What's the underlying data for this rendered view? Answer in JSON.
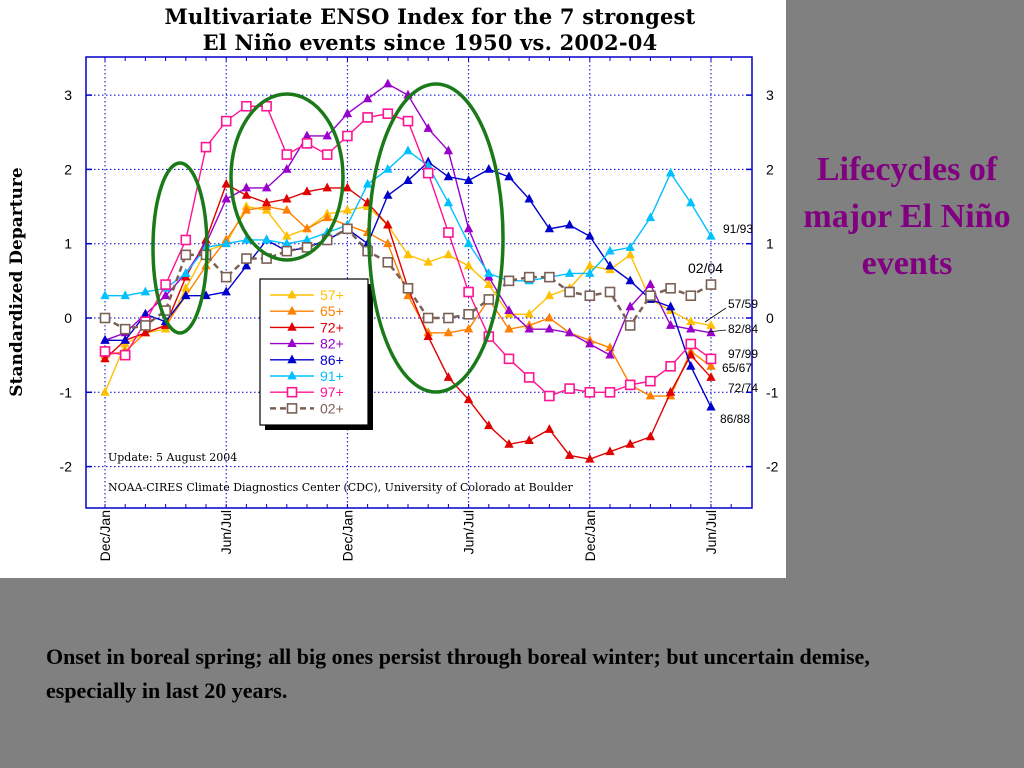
{
  "slide": {
    "side_title": "Lifecycles of major El Niño events",
    "caption": "Onset in boreal spring; all big ones persist through boreal winter; but uncertain demise, especially in last 20 years."
  },
  "chart_data": {
    "type": "line",
    "title": "Multivariate ENSO Index for the 7 strongest",
    "subtitle": "El Niño events since 1950 vs. 2002-04",
    "ylabel": "Standardized Departure",
    "xlabel": "",
    "ylim": [
      -2.5,
      3.4
    ],
    "yticks": [
      -2,
      -1,
      0,
      1,
      2,
      3
    ],
    "xlim": [
      0,
      31
    ],
    "xticks": [
      {
        "x": 0,
        "label": "Dec/Jan"
      },
      {
        "x": 6,
        "label": "Jun/Jul"
      },
      {
        "x": 12,
        "label": "Dec/Jan"
      },
      {
        "x": 18,
        "label": "Jun/Jul"
      },
      {
        "x": 24,
        "label": "Dec/Jan"
      },
      {
        "x": 30,
        "label": "Jun/Jul"
      }
    ],
    "grid": true,
    "legend_position": "center-left",
    "notes": [
      "Update: 5 August 2004",
      "NOAA-CIRES Climate Diagnostics Center (CDC), University of Colorado at Boulder"
    ],
    "series": [
      {
        "name": "57+",
        "end_label": "57/59",
        "color": "#ffc000",
        "marker": "triangle",
        "x": [
          0,
          1,
          2,
          3,
          4,
          5,
          6,
          7,
          8,
          9,
          10,
          11,
          12,
          13,
          14,
          15,
          16,
          17,
          18,
          19,
          20,
          21,
          22,
          23,
          24,
          25,
          26,
          27,
          28,
          29,
          30
        ],
        "values": [
          -1.0,
          -0.35,
          -0.2,
          -0.15,
          0.4,
          0.9,
          1.0,
          1.5,
          1.45,
          1.1,
          1.2,
          1.4,
          1.45,
          1.5,
          1.25,
          0.85,
          0.75,
          0.85,
          0.7,
          0.45,
          0.05,
          0.05,
          0.3,
          0.4,
          0.7,
          0.65,
          0.85,
          0.25,
          0.1,
          -0.05,
          -0.1
        ]
      },
      {
        "name": "65+",
        "end_label": "65/67",
        "color": "#ff8000",
        "marker": "triangle",
        "x": [
          0,
          1,
          2,
          3,
          4,
          5,
          6,
          7,
          8,
          9,
          10,
          11,
          12,
          13,
          14,
          15,
          16,
          17,
          18,
          19,
          20,
          21,
          22,
          23,
          24,
          25,
          26,
          27,
          28,
          29,
          30
        ],
        "values": [
          -0.5,
          -0.45,
          -0.2,
          -0.1,
          0.3,
          0.7,
          1.05,
          1.45,
          1.5,
          1.45,
          1.2,
          1.35,
          1.25,
          1.15,
          1.0,
          0.3,
          -0.2,
          -0.2,
          -0.15,
          0.25,
          -0.15,
          -0.1,
          0.0,
          -0.2,
          -0.3,
          -0.4,
          -0.9,
          -1.05,
          -1.05,
          -0.45,
          -0.65
        ]
      },
      {
        "name": "72+",
        "end_label": "72/74",
        "color": "#e00000",
        "marker": "triangle",
        "x": [
          0,
          1,
          2,
          3,
          4,
          5,
          6,
          7,
          8,
          9,
          10,
          11,
          12,
          13,
          14,
          15,
          16,
          17,
          18,
          19,
          20,
          21,
          22,
          23,
          24,
          25,
          26,
          27,
          28,
          29,
          30
        ],
        "values": [
          -0.55,
          -0.3,
          -0.2,
          -0.1,
          0.55,
          1.05,
          1.8,
          1.65,
          1.55,
          1.6,
          1.7,
          1.75,
          1.75,
          1.55,
          1.25,
          0.4,
          -0.25,
          -0.8,
          -1.1,
          -1.45,
          -1.7,
          -1.65,
          -1.5,
          -1.85,
          -1.9,
          -1.8,
          -1.7,
          -1.6,
          -1.0,
          -0.5,
          -0.8
        ]
      },
      {
        "name": "82+",
        "end_label": "82/84",
        "color": "#9900cc",
        "marker": "triangle",
        "x": [
          0,
          1,
          2,
          3,
          4,
          5,
          6,
          7,
          8,
          9,
          10,
          11,
          12,
          13,
          14,
          15,
          16,
          17,
          18,
          19,
          20,
          21,
          22,
          23,
          24,
          25,
          26,
          27,
          28,
          29,
          30
        ],
        "values": [
          -0.3,
          -0.2,
          0.05,
          0.3,
          0.6,
          1.0,
          1.6,
          1.75,
          1.75,
          2.0,
          2.45,
          2.45,
          2.75,
          2.95,
          3.15,
          3.0,
          2.55,
          2.25,
          1.2,
          0.55,
          0.1,
          -0.15,
          -0.15,
          -0.2,
          -0.35,
          -0.5,
          0.15,
          0.45,
          -0.1,
          -0.15,
          -0.2
        ]
      },
      {
        "name": "86+",
        "end_label": "86/88",
        "color": "#0000cc",
        "marker": "triangle",
        "x": [
          0,
          1,
          2,
          3,
          4,
          5,
          6,
          7,
          8,
          9,
          10,
          11,
          12,
          13,
          14,
          15,
          16,
          17,
          18,
          19,
          20,
          21,
          22,
          23,
          24,
          25,
          26,
          27,
          28,
          29,
          30
        ],
        "values": [
          -0.3,
          -0.3,
          0.05,
          -0.05,
          0.3,
          0.3,
          0.35,
          0.7,
          1.05,
          0.9,
          0.95,
          1.05,
          1.2,
          1.0,
          1.65,
          1.85,
          2.1,
          1.9,
          1.85,
          2.0,
          1.9,
          1.6,
          1.2,
          1.25,
          1.1,
          0.7,
          0.5,
          0.25,
          0.15,
          -0.65,
          -1.2
        ]
      },
      {
        "name": "91+",
        "end_label": "91/93",
        "color": "#00c0ff",
        "marker": "triangle",
        "x": [
          0,
          1,
          2,
          3,
          4,
          5,
          6,
          7,
          8,
          9,
          10,
          11,
          12,
          13,
          14,
          15,
          16,
          17,
          18,
          19,
          20,
          21,
          22,
          23,
          24,
          25,
          26,
          27,
          28,
          29,
          30
        ],
        "values": [
          0.3,
          0.3,
          0.35,
          0.4,
          0.6,
          0.95,
          1.0,
          1.05,
          1.05,
          1.0,
          1.05,
          1.15,
          1.25,
          1.8,
          2.0,
          2.25,
          2.05,
          1.55,
          1.0,
          0.6,
          0.5,
          0.5,
          0.55,
          0.6,
          0.6,
          0.9,
          0.95,
          1.35,
          1.95,
          1.55,
          1.1
        ]
      },
      {
        "name": "97+",
        "end_label": "97/99",
        "color": "#ff1493",
        "marker": "square",
        "x": [
          0,
          1,
          2,
          3,
          4,
          5,
          6,
          7,
          8,
          9,
          10,
          11,
          12,
          13,
          14,
          15,
          16,
          17,
          18,
          19,
          20,
          21,
          22,
          23,
          24,
          25,
          26,
          27,
          28,
          29,
          30
        ],
        "values": [
          -0.45,
          -0.5,
          -0.05,
          0.45,
          1.05,
          2.3,
          2.65,
          2.85,
          2.85,
          2.2,
          2.35,
          2.2,
          2.45,
          2.7,
          2.75,
          2.65,
          1.95,
          1.15,
          0.35,
          -0.25,
          -0.55,
          -0.8,
          -1.05,
          -0.95,
          -1.0,
          -1.0,
          -0.9,
          -0.85,
          -0.65,
          -0.35,
          -0.55
        ]
      },
      {
        "name": "02+",
        "end_label": "02/04",
        "color": "#7a6055",
        "marker": "square",
        "dash": true,
        "x": [
          0,
          1,
          2,
          3,
          4,
          5,
          6,
          7,
          8,
          9,
          10,
          11,
          12,
          13,
          14,
          15,
          16,
          17,
          18,
          19,
          20,
          21,
          22,
          23,
          24,
          25,
          26,
          27,
          28,
          29,
          30
        ],
        "values": [
          0.0,
          -0.15,
          -0.1,
          0.1,
          0.85,
          0.85,
          0.55,
          0.8,
          0.8,
          0.9,
          0.95,
          1.05,
          1.2,
          0.9,
          0.75,
          0.4,
          0.0,
          0.0,
          0.05,
          0.25,
          0.5,
          0.55,
          0.55,
          0.35,
          0.3,
          0.35,
          -0.1,
          0.3,
          0.4,
          0.3,
          0.45
        ]
      }
    ]
  }
}
